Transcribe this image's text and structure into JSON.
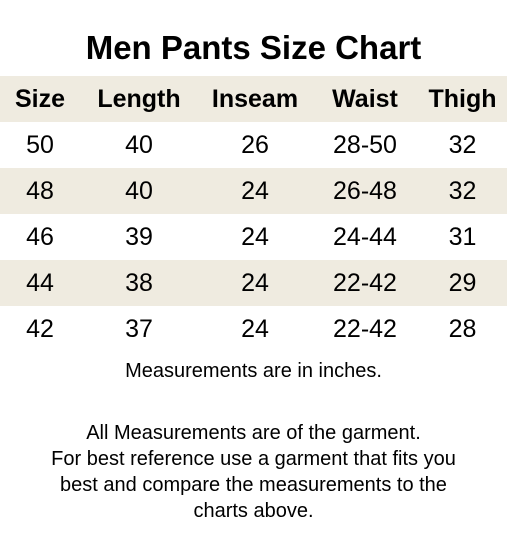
{
  "title": "Men Pants Size Chart",
  "table": {
    "headers": [
      "Size",
      "Length",
      "Inseam",
      "Waist",
      "Thigh"
    ],
    "rows": [
      [
        "50",
        "40",
        "26",
        "28-50",
        "32"
      ],
      [
        "48",
        "40",
        "24",
        "26-48",
        "32"
      ],
      [
        "46",
        "39",
        "24",
        "24-44",
        "31"
      ],
      [
        "44",
        "38",
        "24",
        "22-42",
        "29"
      ],
      [
        "42",
        "37",
        "24",
        "22-42",
        "28"
      ]
    ]
  },
  "note": "Measurements are in inches.",
  "disclaimer": {
    "lines": [
      "All Measurements are of the garment.",
      "For best reference use a garment that fits you",
      "best and compare the measurements to the",
      "charts above."
    ]
  },
  "colors": {
    "shaded_row": "#efebe0",
    "text": "#000000",
    "background": "#ffffff"
  }
}
